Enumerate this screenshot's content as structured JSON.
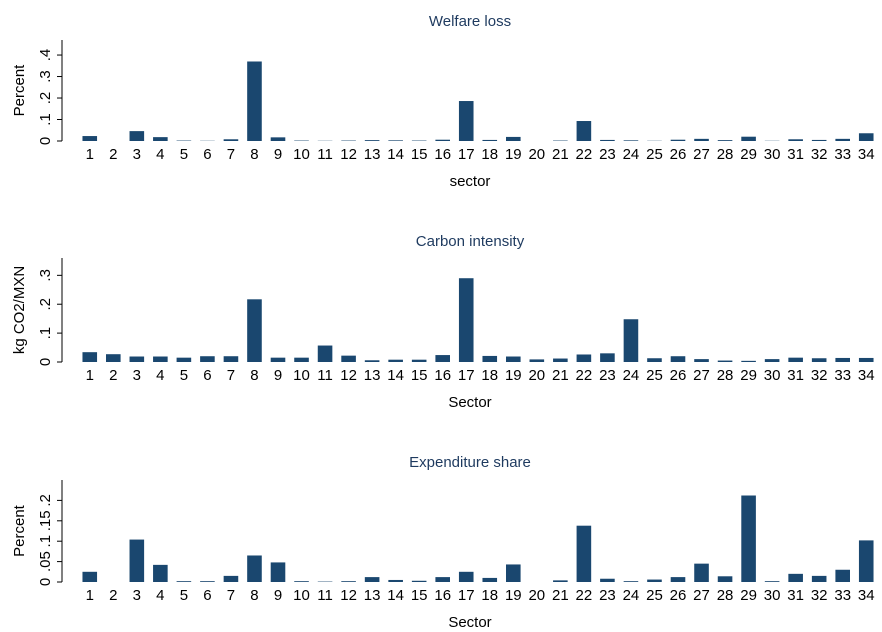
{
  "chart_data": [
    {
      "type": "bar",
      "title": "Welfare loss",
      "xlabel": "sector",
      "ylabel": "Percent",
      "categories": [
        "1",
        "2",
        "3",
        "4",
        "5",
        "6",
        "7",
        "8",
        "9",
        "10",
        "11",
        "12",
        "13",
        "14",
        "15",
        "16",
        "17",
        "18",
        "19",
        "20",
        "21",
        "22",
        "23",
        "24",
        "25",
        "26",
        "27",
        "28",
        "29",
        "30",
        "31",
        "32",
        "33",
        "34"
      ],
      "values": [
        0.023,
        0,
        0.046,
        0.018,
        0.002,
        0.001,
        0.008,
        0.37,
        0.017,
        0.002,
        0.001,
        0.002,
        0.004,
        0.003,
        0.002,
        0.006,
        0.186,
        0.005,
        0.019,
        0,
        0.002,
        0.093,
        0.005,
        0.003,
        0.001,
        0.006,
        0.01,
        0.004,
        0.02,
        0.001,
        0.008,
        0.005,
        0.01,
        0.036
      ],
      "color": "#1a476f",
      "ylim": [
        0,
        0.47
      ],
      "yticks": [
        0,
        {
          "value": 0.1,
          "label": ".1"
        },
        {
          "value": 0.2,
          "label": ".2"
        },
        {
          "value": 0.3,
          "label": ".3"
        },
        {
          "value": 0.4,
          "label": ".4"
        }
      ]
    },
    {
      "type": "bar",
      "title": "Carbon intensity",
      "xlabel": "Sector",
      "ylabel": "kg CO2/MXN",
      "categories": [
        "1",
        "2",
        "3",
        "4",
        "5",
        "6",
        "7",
        "8",
        "9",
        "10",
        "11",
        "12",
        "13",
        "14",
        "15",
        "16",
        "17",
        "18",
        "19",
        "20",
        "21",
        "22",
        "23",
        "24",
        "25",
        "26",
        "27",
        "28",
        "29",
        "30",
        "31",
        "32",
        "33",
        "34"
      ],
      "values": [
        0.034,
        0.027,
        0.019,
        0.019,
        0.015,
        0.02,
        0.02,
        0.217,
        0.015,
        0.015,
        0.057,
        0.022,
        0.006,
        0.008,
        0.008,
        0.024,
        0.29,
        0.021,
        0.019,
        0.009,
        0.012,
        0.026,
        0.03,
        0.148,
        0.013,
        0.02,
        0.01,
        0.005,
        0.004,
        0.01,
        0.015,
        0.013,
        0.014,
        0.014
      ],
      "color": "#1a476f",
      "ylim": [
        0,
        0.36
      ],
      "yticks": [
        0,
        {
          "value": 0.1,
          "label": ".1"
        },
        {
          "value": 0.2,
          "label": ".2"
        },
        {
          "value": 0.3,
          "label": ".3"
        }
      ]
    },
    {
      "type": "bar",
      "title": "Expenditure share",
      "xlabel": "Sector",
      "ylabel": "Percent",
      "categories": [
        "1",
        "2",
        "3",
        "4",
        "5",
        "6",
        "7",
        "8",
        "9",
        "10",
        "11",
        "12",
        "13",
        "14",
        "15",
        "16",
        "17",
        "18",
        "19",
        "20",
        "21",
        "22",
        "23",
        "24",
        "25",
        "26",
        "27",
        "28",
        "29",
        "30",
        "31",
        "32",
        "33",
        "34"
      ],
      "values": [
        0.025,
        0,
        0.104,
        0.042,
        0.002,
        0.002,
        0.015,
        0.065,
        0.048,
        0.002,
        0.001,
        0.002,
        0.012,
        0.005,
        0.003,
        0.012,
        0.025,
        0.01,
        0.043,
        0,
        0.004,
        0.138,
        0.008,
        0.002,
        0.006,
        0.012,
        0.045,
        0.014,
        0.212,
        0.002,
        0.02,
        0.015,
        0.03,
        0.102
      ],
      "color": "#1a476f",
      "ylim": [
        0,
        0.25
      ],
      "yticks": [
        0,
        {
          "value": 0.05,
          "label": ".05"
        },
        {
          "value": 0.1,
          "label": ".1"
        },
        {
          "value": 0.15,
          "label": ".15"
        },
        {
          "value": 0.2,
          "label": ".2"
        }
      ]
    }
  ]
}
